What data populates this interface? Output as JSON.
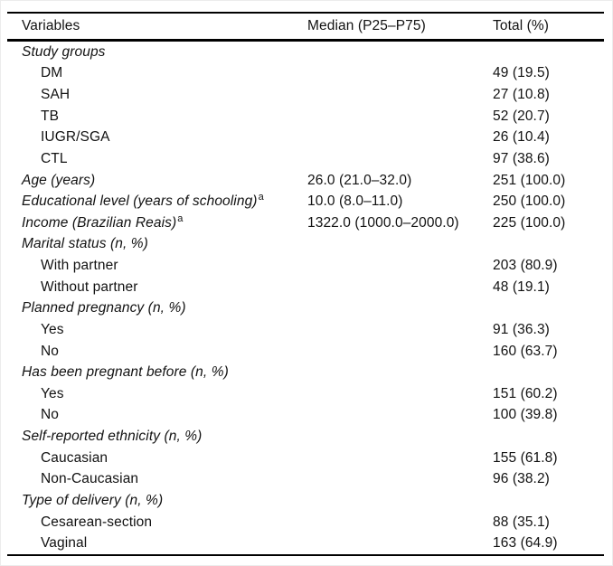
{
  "colors": {
    "background": "#ffffff",
    "text": "#121212",
    "rule": "#000000"
  },
  "table": {
    "columns": [
      "Variables",
      "Median (P25–P75)",
      "Total (%)"
    ],
    "rows": [
      {
        "label": "Study groups",
        "sup": "",
        "style": "group",
        "median": "",
        "total": ""
      },
      {
        "label": "DM",
        "sup": "",
        "style": "item",
        "median": "",
        "total": "49 (19.5)"
      },
      {
        "label": "SAH",
        "sup": "",
        "style": "item",
        "median": "",
        "total": "27 (10.8)"
      },
      {
        "label": "TB",
        "sup": "",
        "style": "item",
        "median": "",
        "total": "52 (20.7)"
      },
      {
        "label": "IUGR/SGA",
        "sup": "",
        "style": "item",
        "median": "",
        "total": "26 (10.4)"
      },
      {
        "label": "CTL",
        "sup": "",
        "style": "item",
        "median": "",
        "total": "97 (38.6)"
      },
      {
        "label": "Age (years)",
        "sup": "",
        "style": "group",
        "median": "26.0 (21.0–32.0)",
        "total": "251 (100.0)"
      },
      {
        "label": "Educational level (years of schooling)",
        "sup": "a",
        "style": "group",
        "median": "10.0 (8.0–11.0)",
        "total": "250 (100.0)"
      },
      {
        "label": "Income (Brazilian Reais)",
        "sup": "a",
        "style": "group",
        "median": "1322.0 (1000.0–2000.0)",
        "total": "225 (100.0)"
      },
      {
        "label": "Marital status (n, %)",
        "sup": "",
        "style": "group",
        "median": "",
        "total": ""
      },
      {
        "label": "With partner",
        "sup": "",
        "style": "item",
        "median": "",
        "total": "203 (80.9)"
      },
      {
        "label": "Without partner",
        "sup": "",
        "style": "item",
        "median": "",
        "total": "48 (19.1)"
      },
      {
        "label": "Planned pregnancy (n, %)",
        "sup": "",
        "style": "group",
        "median": "",
        "total": ""
      },
      {
        "label": "Yes",
        "sup": "",
        "style": "item",
        "median": "",
        "total": "91 (36.3)"
      },
      {
        "label": "No",
        "sup": "",
        "style": "item",
        "median": "",
        "total": "160 (63.7)"
      },
      {
        "label": "Has been pregnant before (n, %)",
        "sup": "",
        "style": "group",
        "median": "",
        "total": ""
      },
      {
        "label": "Yes",
        "sup": "",
        "style": "item",
        "median": "",
        "total": "151 (60.2)"
      },
      {
        "label": "No",
        "sup": "",
        "style": "item",
        "median": "",
        "total": "100 (39.8)"
      },
      {
        "label": "Self-reported ethnicity (n, %)",
        "sup": "",
        "style": "group",
        "median": "",
        "total": ""
      },
      {
        "label": "Caucasian",
        "sup": "",
        "style": "item",
        "median": "",
        "total": "155 (61.8)"
      },
      {
        "label": "Non-Caucasian",
        "sup": "",
        "style": "item",
        "median": "",
        "total": "96 (38.2)"
      },
      {
        "label": "Type of delivery (n, %)",
        "sup": "",
        "style": "group",
        "median": "",
        "total": ""
      },
      {
        "label": "Cesarean-section",
        "sup": "",
        "style": "item",
        "median": "",
        "total": "88 (35.1)"
      },
      {
        "label": "Vaginal",
        "sup": "",
        "style": "item",
        "median": "",
        "total": "163 (64.9)"
      }
    ]
  }
}
